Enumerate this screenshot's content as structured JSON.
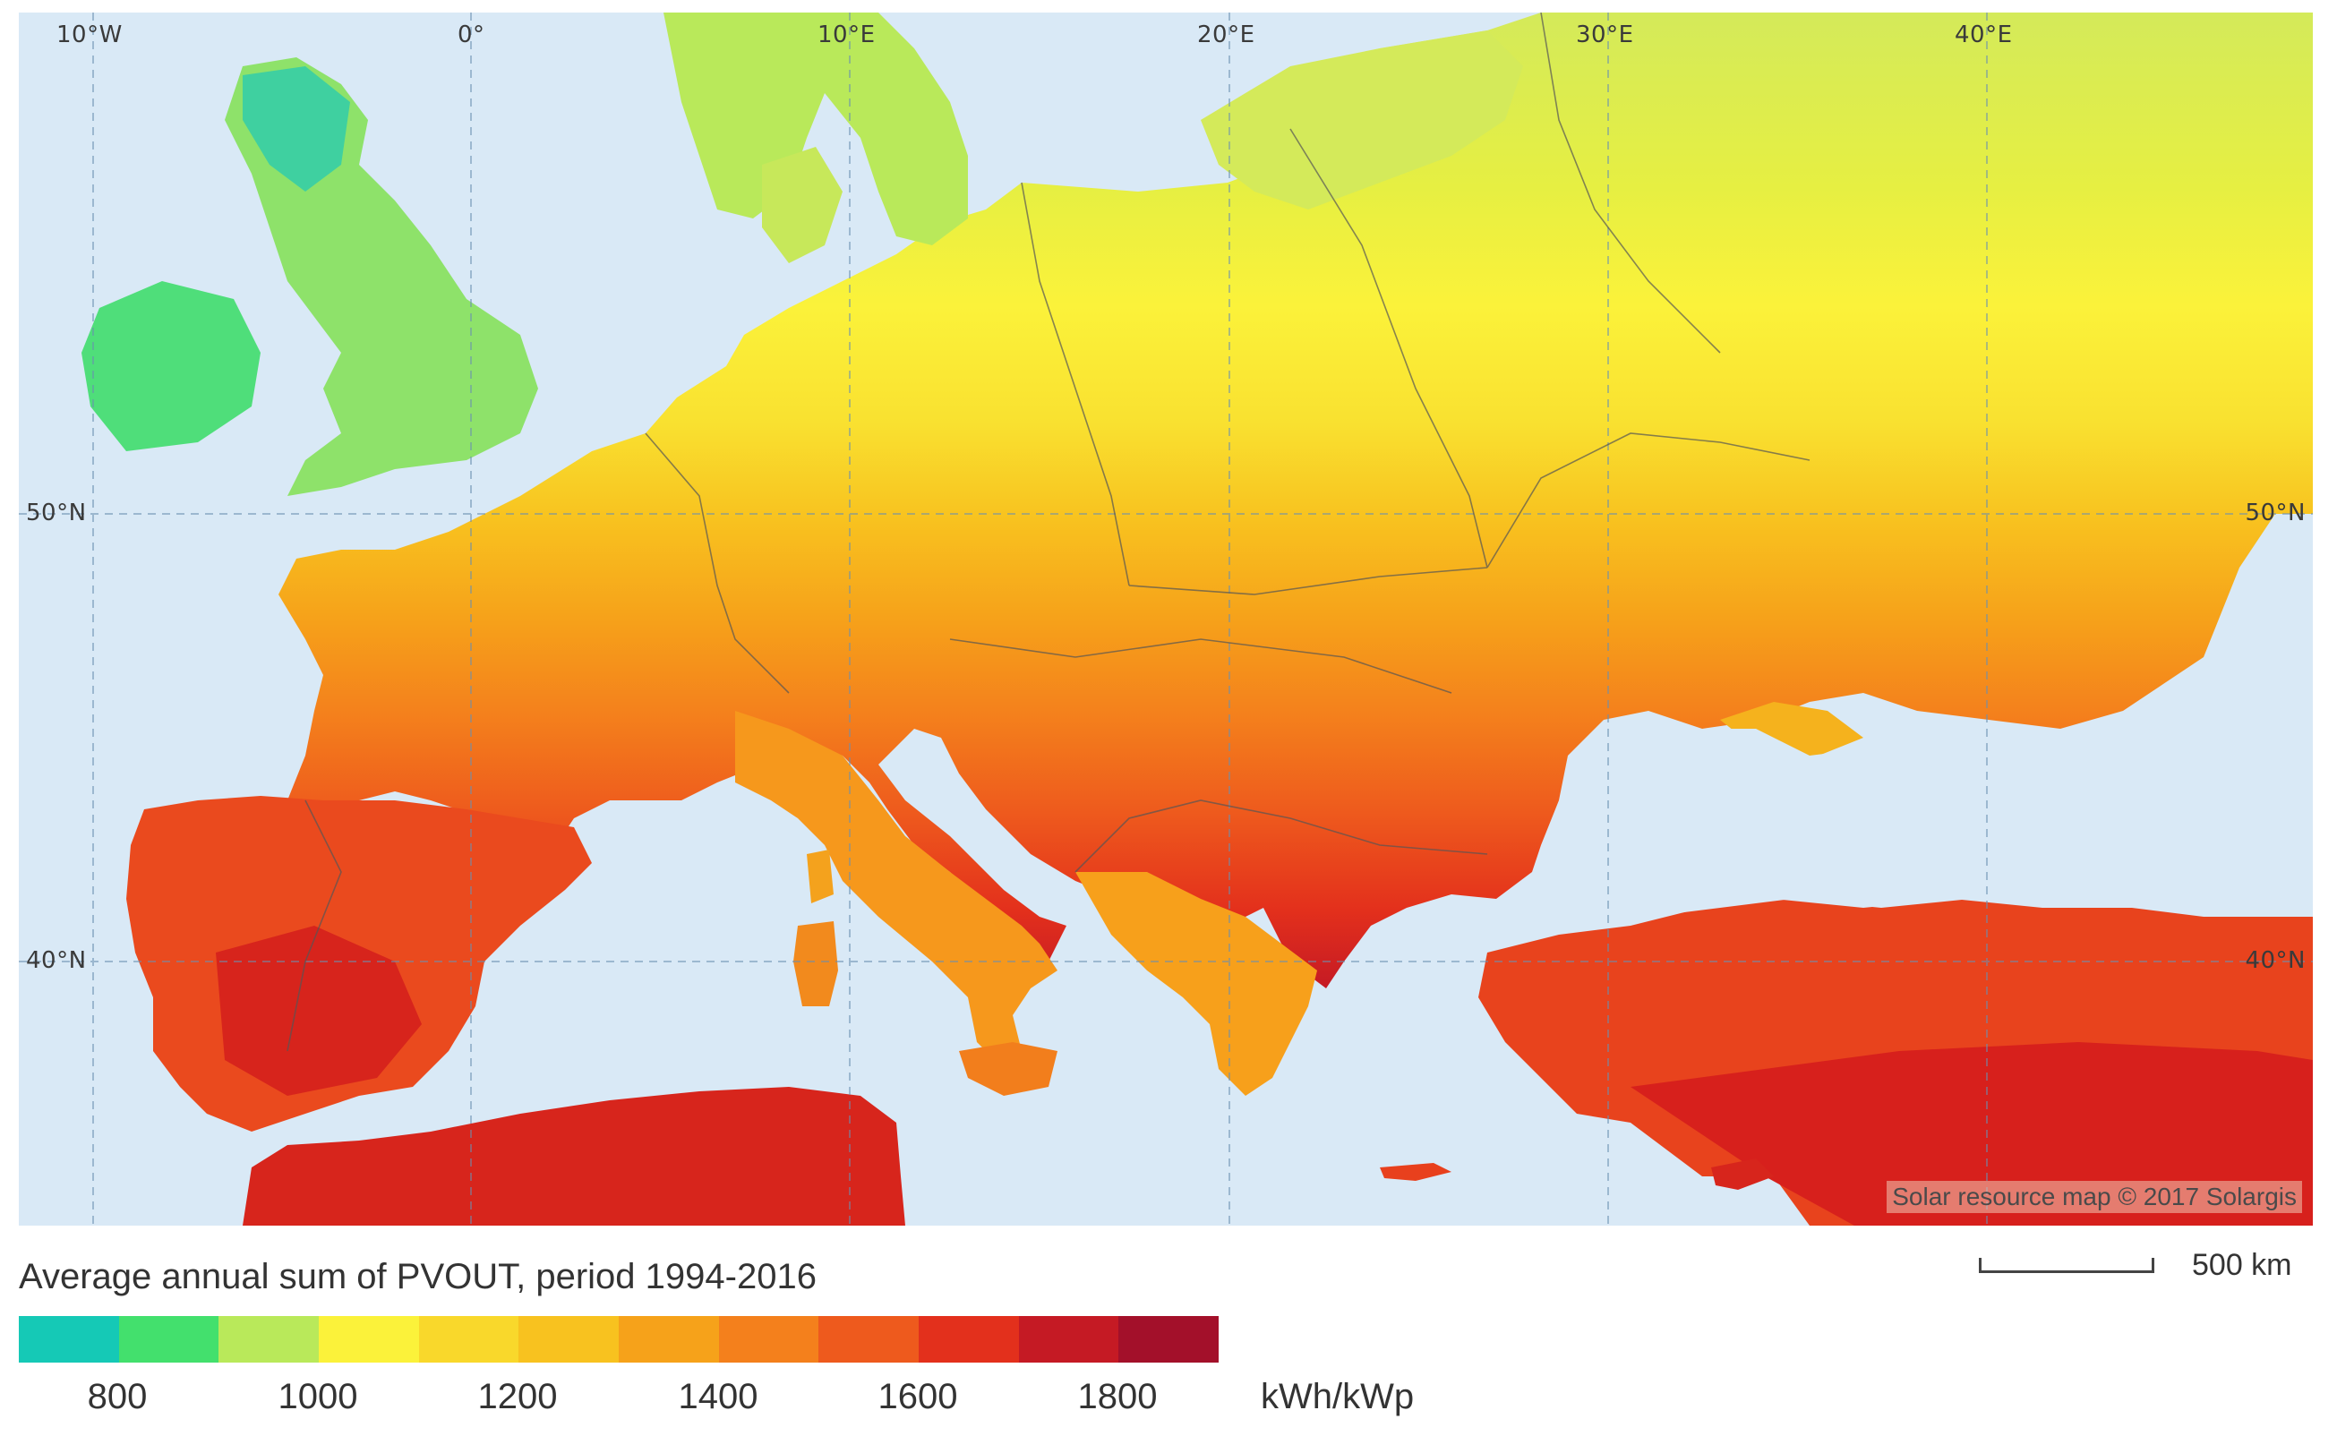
{
  "map": {
    "longitude_labels": [
      "10°W",
      "0°",
      "10°E",
      "20°E",
      "30°E",
      "40°E"
    ],
    "latitude_labels": [
      "50°N",
      "40°N"
    ],
    "credit": "Solar resource map © 2017 Solargis",
    "sea_color": "#d9e9f6",
    "border_color": "#555555"
  },
  "legend": {
    "title": "Average annual sum of PVOUT, period 1994-2016",
    "colors": [
      "#15c9b6",
      "#43e06d",
      "#b9e95a",
      "#fbf23a",
      "#f9d82b",
      "#f8c21f",
      "#f6a21a",
      "#f4801c",
      "#ee5a1d",
      "#e3301c",
      "#c51a24",
      "#a3102a"
    ],
    "ticks": [
      "800",
      "1000",
      "1200",
      "1400",
      "1600",
      "1800"
    ],
    "unit": "kWh/kWp"
  },
  "scale": {
    "label": "500 km"
  }
}
